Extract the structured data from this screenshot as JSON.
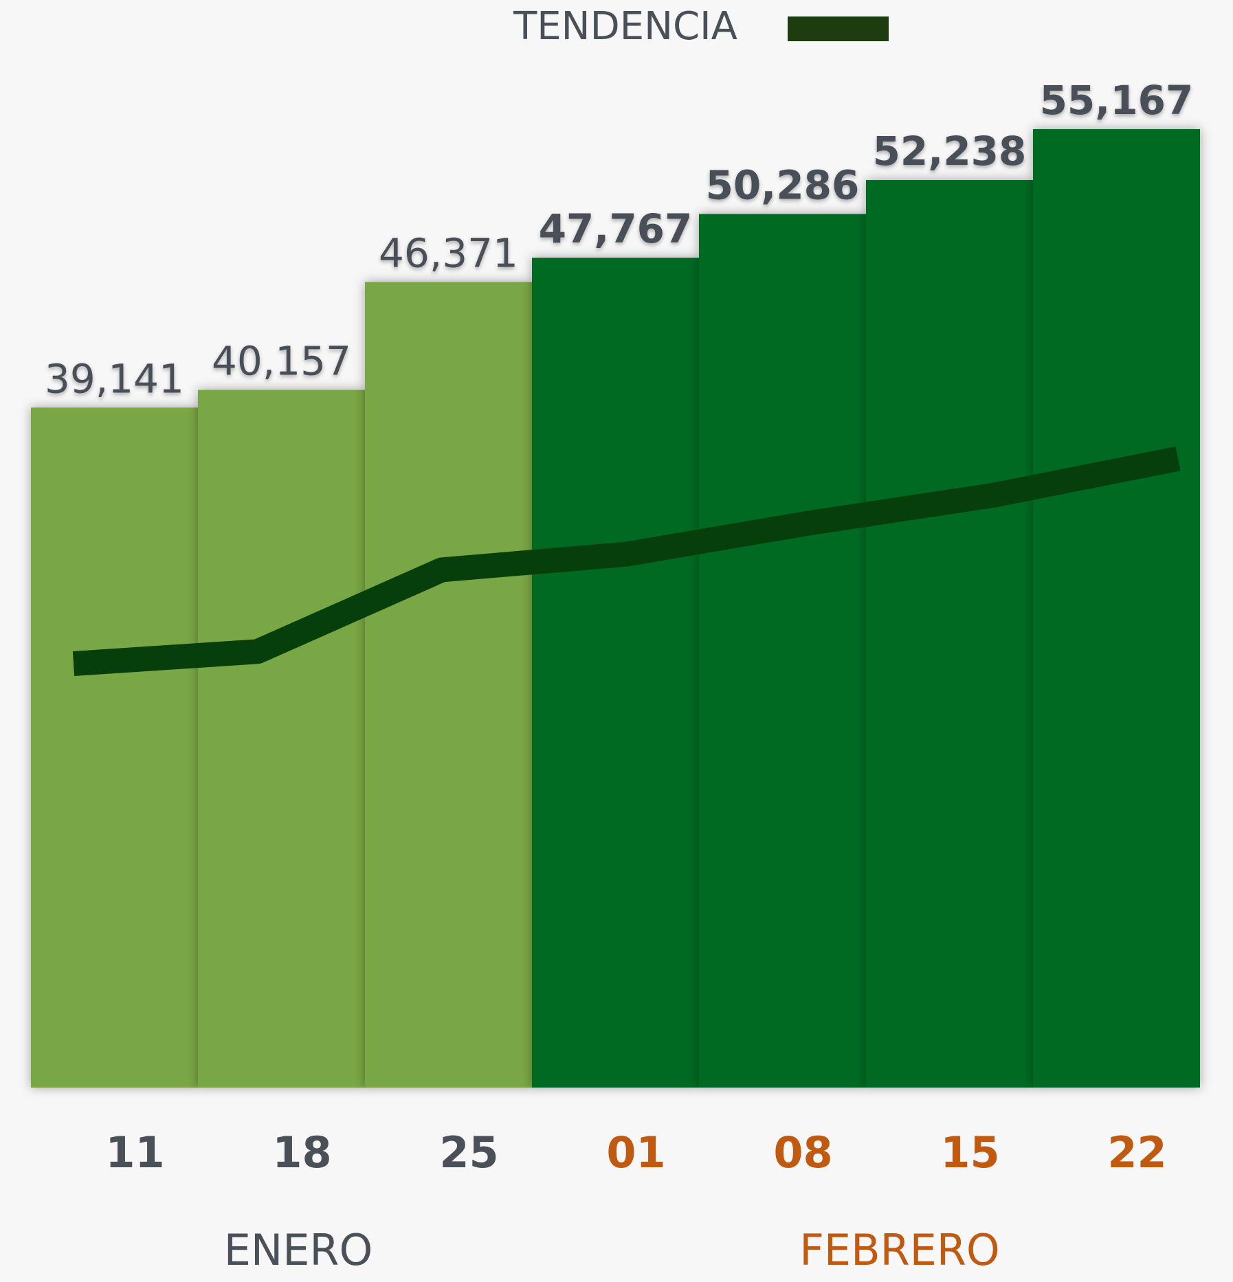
{
  "chart_data": {
    "type": "bar",
    "legend_label": "TENDENCIA",
    "legend_color": "#1d3d10",
    "categories": [
      "11",
      "18",
      "25",
      "01",
      "08",
      "15",
      "22"
    ],
    "category_colors": [
      "#4a5058",
      "#4a5058",
      "#4a5058",
      "#c05a10",
      "#c05a10",
      "#c05a10",
      "#c05a10"
    ],
    "values": [
      39141,
      40157,
      46371,
      47767,
      50286,
      52238,
      55167
    ],
    "value_labels": [
      "39,141",
      "40,157",
      "46,371",
      "47,767",
      "50,286",
      "52,238",
      "55,167"
    ],
    "colors": [
      "#7aa744",
      "#7aa744",
      "#7aa744",
      "#006b22",
      "#006b22",
      "#006b22",
      "#006b22"
    ],
    "trend": {
      "name": "TENDENCIA",
      "color": "#063f0c",
      "values": [
        24400,
        25100,
        29800,
        30700,
        32500,
        34100,
        36200
      ]
    },
    "months": [
      {
        "name": "ENERO",
        "color": "#4a5058"
      },
      {
        "name": "FEBRERO",
        "color": "#c05a10"
      }
    ]
  }
}
